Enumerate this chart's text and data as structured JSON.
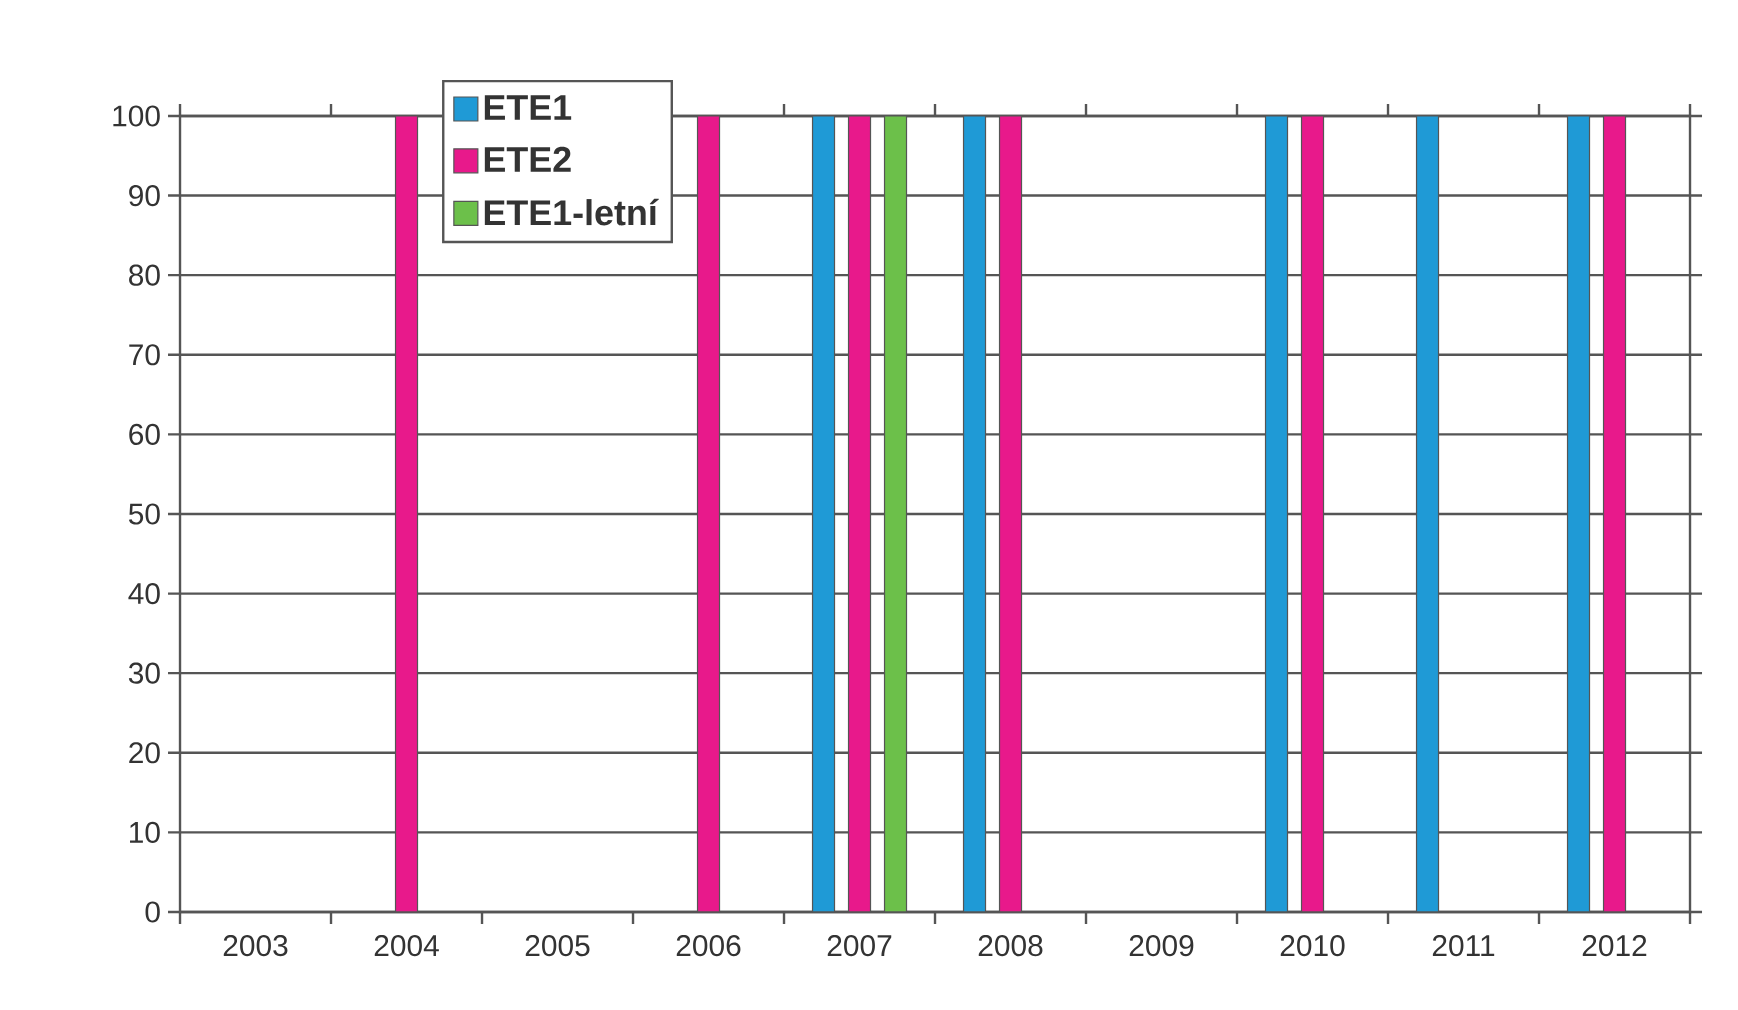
{
  "chart_data": {
    "type": "bar",
    "categories": [
      "2003",
      "2004",
      "2005",
      "2006",
      "2007",
      "2008",
      "2009",
      "2010",
      "2011",
      "2012"
    ],
    "series": [
      {
        "name": "ETE1",
        "color": "#1f9ad6",
        "values": [
          0,
          0,
          0,
          0,
          100,
          100,
          0,
          100,
          100,
          100
        ]
      },
      {
        "name": "ETE2",
        "color": "#e8198b",
        "values": [
          0,
          100,
          0,
          100,
          100,
          100,
          0,
          100,
          0,
          100
        ]
      },
      {
        "name": "ETE1-letní",
        "color": "#6cc04a",
        "values": [
          0,
          0,
          0,
          0,
          100,
          0,
          0,
          0,
          0,
          0
        ]
      }
    ],
    "ylim": [
      0,
      100
    ],
    "yticks": [
      0,
      10,
      20,
      30,
      40,
      50,
      60,
      70,
      80,
      90,
      100
    ],
    "grid": "y",
    "legend": "top left"
  }
}
